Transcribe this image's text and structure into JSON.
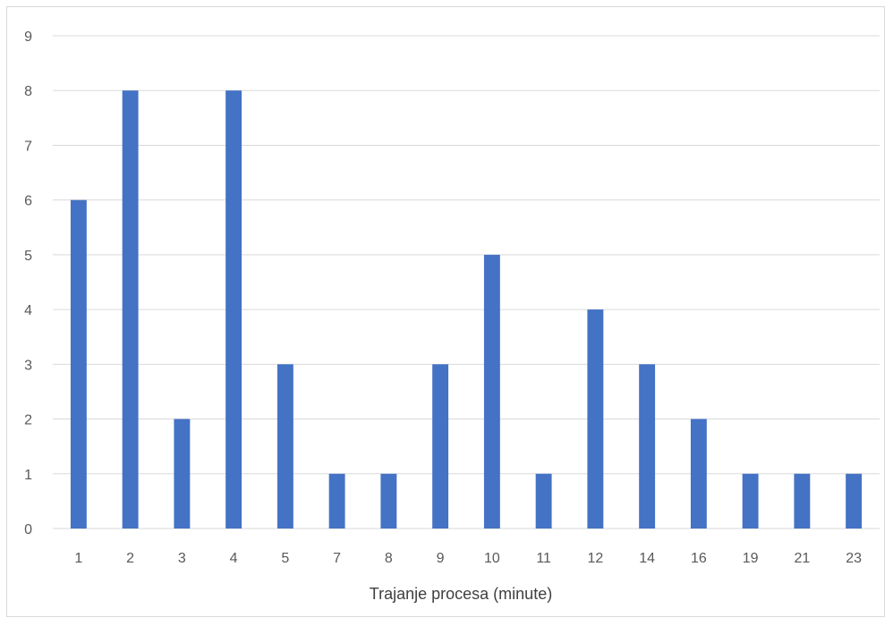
{
  "chart_data": {
    "type": "bar",
    "categories": [
      "1",
      "2",
      "3",
      "4",
      "5",
      "7",
      "8",
      "9",
      "10",
      "11",
      "12",
      "14",
      "16",
      "19",
      "21",
      "23"
    ],
    "values": [
      6,
      8,
      2,
      8,
      3,
      1,
      1,
      3,
      5,
      1,
      4,
      3,
      2,
      1,
      1,
      1
    ],
    "title": "",
    "xlabel": "Trajanje procesa (minute)",
    "ylabel": "",
    "ylim": [
      0,
      9
    ],
    "yticks": [
      0,
      1,
      2,
      3,
      4,
      5,
      6,
      7,
      8,
      9
    ],
    "grid": true,
    "legend": "none",
    "colors": {
      "bar": "#4472c4",
      "grid": "#d9d9d9",
      "tick_text": "#595959"
    }
  }
}
